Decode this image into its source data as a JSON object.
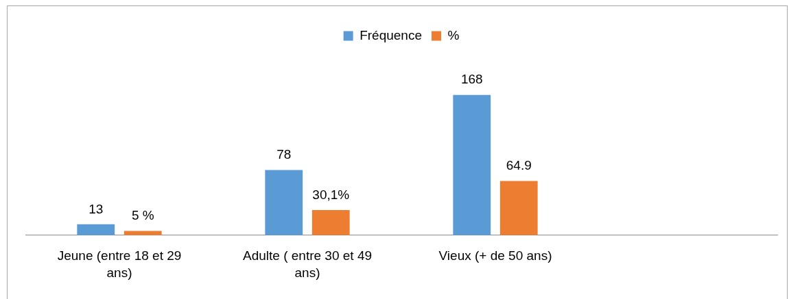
{
  "chart_data": {
    "type": "bar",
    "categories": [
      "Jeune (entre 18 et 29 ans)",
      "Adulte ( entre 30 et 49 ans)",
      "Vieux (+ de 50 ans)",
      null
    ],
    "series": [
      {
        "name": "Fréquence",
        "color": "#5b9bd5",
        "values": [
          13,
          78,
          168,
          null
        ]
      },
      {
        "name": "%",
        "color": "#ed7d31",
        "values": [
          5,
          30.1,
          64.9,
          null
        ],
        "value_labels": [
          "5 %",
          "30,1%",
          "64.9",
          null
        ]
      }
    ],
    "data_labels": true,
    "legend": "top",
    "grid": false
  }
}
